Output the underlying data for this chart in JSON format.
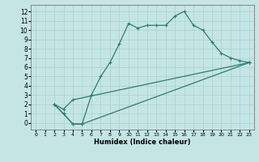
{
  "xlabel": "Humidex (Indice chaleur)",
  "bg_color": "#c5e5e5",
  "grid_color": "#aed4d4",
  "line_color": "#2e7d6e",
  "xlim": [
    -0.5,
    23.5
  ],
  "ylim": [
    -0.7,
    12.7
  ],
  "xticks": [
    0,
    1,
    2,
    3,
    4,
    5,
    6,
    7,
    8,
    9,
    10,
    11,
    12,
    13,
    14,
    15,
    16,
    17,
    18,
    19,
    20,
    21,
    22,
    23
  ],
  "yticks": [
    0,
    1,
    2,
    3,
    4,
    5,
    6,
    7,
    8,
    9,
    10,
    11,
    12
  ],
  "line1_x": [
    2,
    3,
    4,
    5,
    6,
    7,
    8,
    9,
    10,
    11,
    12,
    13,
    14,
    15,
    16,
    17,
    18,
    19,
    20,
    21,
    22,
    23
  ],
  "line1_y": [
    2.0,
    1.0,
    -0.1,
    -0.1,
    3.0,
    5.0,
    6.5,
    8.5,
    10.7,
    10.2,
    10.5,
    10.5,
    10.5,
    11.5,
    12.0,
    10.5,
    10.0,
    8.7,
    7.5,
    7.0,
    6.7,
    6.5
  ],
  "line2_x": [
    2,
    3,
    4,
    23
  ],
  "line2_y": [
    2.0,
    1.5,
    2.5,
    6.5
  ],
  "line3_x": [
    2,
    3,
    4,
    5,
    23
  ],
  "line3_y": [
    2.0,
    1.0,
    -0.1,
    -0.1,
    6.5
  ]
}
